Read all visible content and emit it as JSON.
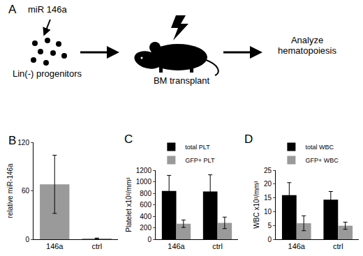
{
  "diagram": {
    "panel": "A",
    "labels": {
      "mirna": "miR 146a",
      "cells": "Lin(-) progenitors",
      "transplant": "BM transplant",
      "analysis": "Analyze hematopoiesis"
    }
  },
  "chart_data": [
    {
      "panel": "B",
      "type": "bar",
      "y_label": "relative miR-146a",
      "categories": [
        "146a",
        "ctrl"
      ],
      "values": [
        68,
        1
      ],
      "errors": [
        36,
        0.5
      ],
      "color": "#9a9a9a",
      "ylim": [
        0,
        120
      ],
      "yticks": [
        0,
        60,
        120
      ],
      "grid": false
    },
    {
      "panel": "C",
      "type": "bar",
      "y_label": "Platelet x10³/mm³",
      "categories": [
        "146a",
        "ctrl"
      ],
      "series": [
        {
          "name": "total PLT",
          "color": "#000000",
          "values": [
            840,
            830
          ],
          "errors": [
            270,
            290
          ]
        },
        {
          "name": "GFP+ PLT",
          "color": "#9a9a9a",
          "values": [
            270,
            285
          ],
          "errors": [
            65,
            100
          ]
        }
      ],
      "ylim": [
        0,
        1200
      ],
      "yticks": [
        0,
        200,
        400,
        600,
        800,
        1000,
        1200
      ],
      "grid": false,
      "legend": "top"
    },
    {
      "panel": "D",
      "type": "bar",
      "y_label": "WBC x10³/mm³",
      "categories": [
        "146a",
        "ctrl"
      ],
      "series": [
        {
          "name": "total WBC",
          "color": "#000000",
          "values": [
            16,
            14.3
          ],
          "errors": [
            4.5,
            3
          ]
        },
        {
          "name": "GFP+ WBC",
          "color": "#9a9a9a",
          "values": [
            5.8,
            4.9
          ],
          "errors": [
            2.7,
            1.3
          ]
        }
      ],
      "ylim": [
        0,
        25
      ],
      "yticks": [
        0,
        5,
        10,
        15,
        20,
        25
      ],
      "grid": false,
      "legend": "top"
    }
  ]
}
